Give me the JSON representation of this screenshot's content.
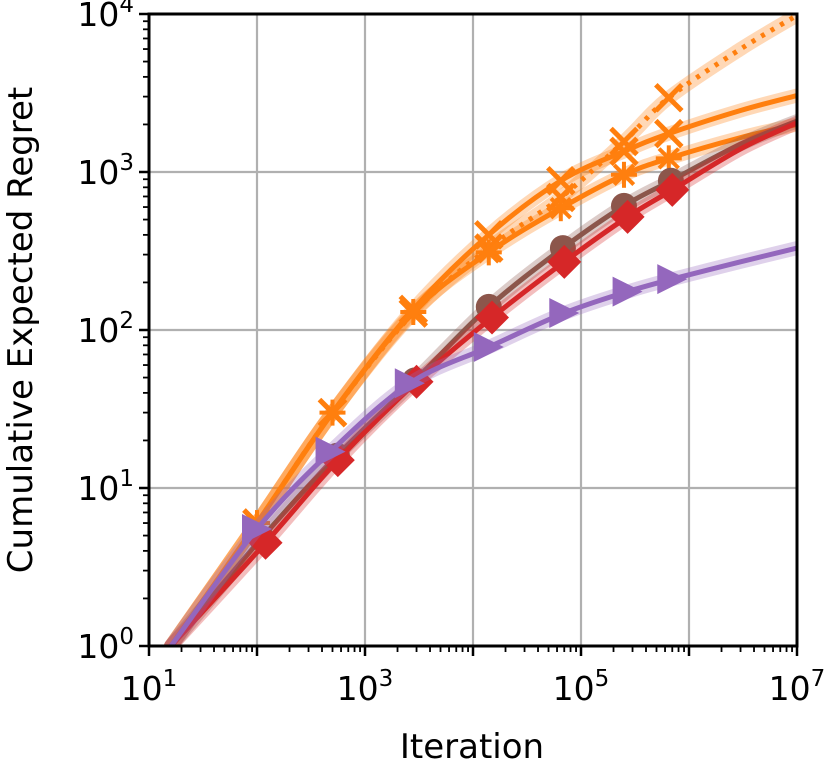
{
  "chart_data": {
    "type": "line",
    "title": "",
    "xlabel": "Iteration",
    "ylabel": "Cumulative Expected Regret",
    "xscale": "log",
    "yscale": "log",
    "xlim": [
      10,
      10000000
    ],
    "ylim": [
      1,
      10000
    ],
    "grid": true,
    "legend": "none",
    "x_ticks": [
      {
        "base": "10",
        "exp": "1"
      },
      {
        "base": "10",
        "exp": "3"
      },
      {
        "base": "10",
        "exp": "5"
      },
      {
        "base": "10",
        "exp": "7"
      }
    ],
    "y_ticks": [
      {
        "base": "10",
        "exp": "0"
      },
      {
        "base": "10",
        "exp": "1"
      },
      {
        "base": "10",
        "exp": "2"
      },
      {
        "base": "10",
        "exp": "3"
      },
      {
        "base": "10",
        "exp": "4"
      }
    ],
    "series": [
      {
        "color": "#ff7f0e",
        "marker": "x",
        "dash": "dotted",
        "x": [
          16,
          100,
          500,
          2800,
          14000,
          65000,
          250000,
          650000,
          3000000,
          10000000
        ],
        "y": [
          1,
          6,
          30,
          128,
          330,
          690,
          1560,
          2950,
          6000,
          9800
        ],
        "markers_x": [
          100,
          500,
          2800,
          14000,
          65000,
          250000,
          650000
        ],
        "markers_y": [
          6,
          30,
          128,
          330,
          690,
          1560,
          2950
        ]
      },
      {
        "color": "#ff7f0e",
        "marker": "x",
        "dash": "solid",
        "x": [
          16,
          100,
          500,
          2800,
          14000,
          65000,
          250000,
          650000,
          3000000,
          10000000
        ],
        "y": [
          1,
          6,
          30,
          135,
          400,
          880,
          1350,
          1750,
          2450,
          3050
        ],
        "markers_x": [
          100,
          500,
          2800,
          14000,
          65000,
          250000,
          650000
        ],
        "markers_y": [
          6,
          30,
          135,
          400,
          880,
          1350,
          1750
        ]
      },
      {
        "color": "#ff7f0e",
        "marker": "star",
        "dash": "solid",
        "x": [
          16,
          100,
          500,
          2800,
          14000,
          65000,
          250000,
          650000,
          3000000,
          10000000
        ],
        "y": [
          1,
          6,
          30,
          130,
          310,
          590,
          960,
          1220,
          1650,
          2000
        ],
        "markers_x": [
          100,
          500,
          2800,
          14000,
          65000,
          250000,
          650000
        ],
        "markers_y": [
          6,
          30,
          130,
          310,
          590,
          960,
          1220
        ]
      },
      {
        "color": "#8c564b",
        "marker": "circle",
        "dash": "solid",
        "x": [
          16,
          110,
          550,
          2900,
          14000,
          68000,
          250000,
          680000,
          3000000,
          10000000
        ],
        "y": [
          1,
          4.8,
          16,
          48,
          140,
          330,
          610,
          880,
          1500,
          2100
        ],
        "markers_x": [
          110,
          550,
          2900,
          14000,
          68000,
          250000,
          680000
        ],
        "markers_y": [
          4.8,
          16,
          48,
          140,
          330,
          610,
          880
        ]
      },
      {
        "color": "#d62728",
        "marker": "diamond",
        "dash": "solid",
        "x": [
          16,
          120,
          560,
          3000,
          15000,
          70000,
          270000,
          700000,
          3000000,
          10000000
        ],
        "y": [
          1,
          4.5,
          15,
          47,
          120,
          270,
          520,
          770,
          1400,
          2050
        ],
        "markers_x": [
          120,
          560,
          3000,
          15000,
          70000,
          270000,
          700000
        ],
        "markers_y": [
          4.5,
          15,
          47,
          120,
          270,
          520,
          770
        ]
      },
      {
        "color": "#9467bd",
        "marker": "triangle-right",
        "dash": "solid",
        "x": [
          16,
          100,
          480,
          2600,
          14000,
          70000,
          270000,
          700000,
          3000000,
          10000000
        ],
        "y": [
          1,
          5.5,
          17,
          46,
          78,
          128,
          175,
          210,
          270,
          330
        ],
        "markers_x": [
          100,
          480,
          2600,
          14000,
          70000,
          270000,
          700000
        ],
        "markers_y": [
          5.5,
          17,
          46,
          78,
          128,
          175,
          210
        ]
      }
    ]
  }
}
